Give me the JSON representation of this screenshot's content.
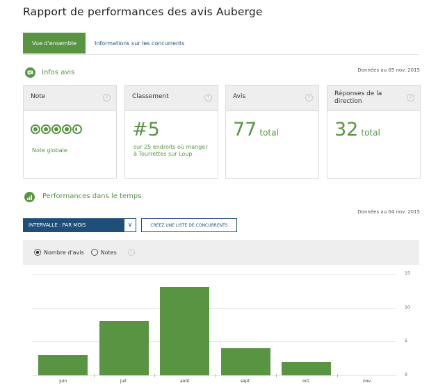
{
  "page": {
    "title": "Rapport de performances des avis Auberge"
  },
  "tabs": [
    {
      "label": "Vue d'ensemble",
      "active": true
    },
    {
      "label": "Informations sur les concurrents",
      "active": false
    }
  ],
  "reviews_section": {
    "title": "Infos avis",
    "date": "Données au 05 nov. 2015",
    "cards": {
      "rating": {
        "header": "Note",
        "bubbles_rating": 4.5,
        "caption": "Note globale"
      },
      "ranking": {
        "header": "Classement",
        "value": "#5",
        "caption": "sur 25 endroits où manger à Tourrettes sur Loup"
      },
      "reviews": {
        "header": "Avis",
        "value": "77",
        "unit": "total"
      },
      "responses": {
        "header": "Réponses de la direction",
        "value": "32",
        "unit": "total"
      }
    }
  },
  "performance_section": {
    "title": "Performances dans le temps",
    "date": "Données au 04 nov. 2015",
    "interval_select": "INTERVALLE : PAR MOIS",
    "competitors_button": "CRÉEZ UNE LISTE DE CONCURRENTS",
    "radio_options": [
      {
        "label": "Nombre d'avis",
        "selected": true
      },
      {
        "label": "Notes",
        "selected": false
      }
    ]
  },
  "colors": {
    "accent_green": "#589442",
    "navy": "#1f4e79",
    "panel_gray": "#eeeeee"
  },
  "chart_data": {
    "type": "bar",
    "categories": [
      "juin",
      "juil.",
      "août",
      "sept.",
      "oct.",
      "nov."
    ],
    "values": [
      3,
      8,
      13,
      4,
      2,
      0
    ],
    "ylim": [
      0,
      15
    ],
    "yticks": [
      0,
      5,
      10,
      15
    ],
    "grid": true,
    "y_axis_side": "right"
  }
}
